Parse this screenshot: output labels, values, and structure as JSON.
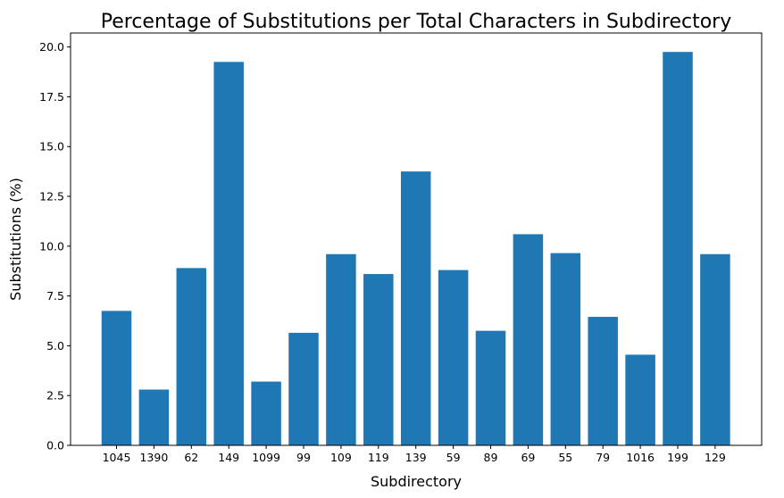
{
  "chart_data": {
    "type": "bar",
    "title": "Percentage of Substitutions per Total Characters in Subdirectory",
    "xlabel": "Subdirectory",
    "ylabel": "Substitutions (%)",
    "categories": [
      "1045",
      "1390",
      "62",
      "149",
      "1099",
      "99",
      "109",
      "119",
      "139",
      "59",
      "89",
      "69",
      "55",
      "79",
      "1016",
      "199",
      "129"
    ],
    "values": [
      6.75,
      2.8,
      8.9,
      19.25,
      3.2,
      5.65,
      9.6,
      8.6,
      13.75,
      8.8,
      5.75,
      10.6,
      9.65,
      6.45,
      4.55,
      19.75,
      9.6
    ],
    "ylim": [
      0,
      20.7
    ],
    "yticks": [
      "0.0",
      "2.5",
      "5.0",
      "7.5",
      "10.0",
      "12.5",
      "15.0",
      "17.5",
      "20.0"
    ],
    "grid": false,
    "bar_color": "#1f77b4"
  }
}
